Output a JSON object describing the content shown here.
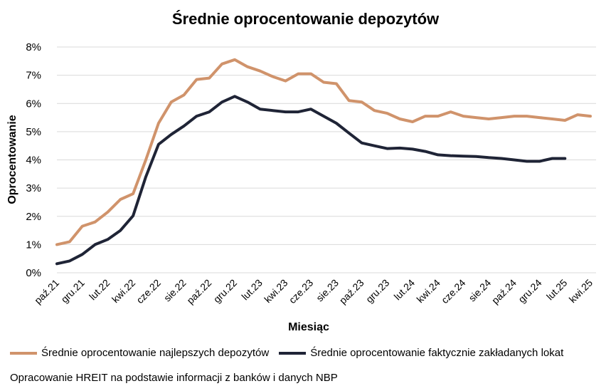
{
  "chart_data": {
    "type": "line",
    "title": "Średnie oprocentowanie depozytów",
    "xlabel": "Miesiąc",
    "ylabel": "Oprocentowanie",
    "ylim": [
      0,
      8
    ],
    "y_ticks": [
      "0%",
      "1%",
      "2%",
      "3%",
      "4%",
      "5%",
      "6%",
      "7%",
      "8%"
    ],
    "x": [
      "paź.21",
      "lis.21",
      "gru.21",
      "sty.22",
      "lut.22",
      "mar.22",
      "kwi.22",
      "maj.22",
      "cze.22",
      "lip.22",
      "sie.22",
      "wrz.22",
      "paź.22",
      "lis.22",
      "gru.22",
      "sty.23",
      "lut.23",
      "mar.23",
      "kwi.23",
      "maj.23",
      "cze.23",
      "lip.23",
      "sie.23",
      "wrz.23",
      "paź.23",
      "lis.23",
      "gru.23",
      "sty.24",
      "lut.24",
      "mar.24",
      "kwi.24",
      "maj.24",
      "cze.24",
      "lip.24",
      "sie.24",
      "wrz.24",
      "paź.24",
      "lis.24",
      "gru.24",
      "sty.25",
      "lut.25",
      "mar.25",
      "kwi.25"
    ],
    "x_tick_labels": [
      "paź.21",
      "gru.21",
      "lut.22",
      "kwi.22",
      "cze.22",
      "sie.22",
      "paź.22",
      "gru.22",
      "lut.23",
      "kwi.23",
      "cze.23",
      "sie.23",
      "paź.23",
      "gru.23",
      "lut.24",
      "kwi.24",
      "cze.24",
      "sie.24",
      "paź.24",
      "gru.24",
      "lut.25",
      "kwi.25"
    ],
    "grid": true,
    "legend_position": "bottom",
    "series": [
      {
        "name": "Średnie oprocentowanie najlepszych depozytów",
        "color": "#d0936b",
        "values": [
          1.0,
          1.1,
          1.65,
          1.8,
          2.15,
          2.6,
          2.8,
          4.0,
          5.3,
          6.05,
          6.3,
          6.85,
          6.9,
          7.4,
          7.55,
          7.3,
          7.15,
          6.95,
          6.8,
          7.05,
          7.05,
          6.75,
          6.7,
          6.1,
          6.05,
          5.75,
          5.65,
          5.45,
          5.35,
          5.55,
          5.55,
          5.7,
          5.55,
          5.5,
          5.45,
          5.5,
          5.55,
          5.55,
          5.5,
          5.45,
          5.4,
          5.6,
          5.55
        ]
      },
      {
        "name": "Średnie oprocentowanie faktycznie zakładanych lokat",
        "color": "#1f2436",
        "values": [
          0.32,
          0.42,
          0.65,
          1.0,
          1.18,
          1.5,
          2.02,
          3.4,
          4.55,
          4.9,
          5.2,
          5.55,
          5.7,
          6.05,
          6.25,
          6.05,
          5.8,
          5.75,
          5.7,
          5.7,
          5.8,
          5.55,
          5.3,
          4.95,
          4.6,
          4.5,
          4.4,
          4.42,
          4.38,
          4.3,
          4.18,
          4.15,
          4.13,
          4.12,
          4.08,
          4.05,
          4.0,
          3.95,
          3.95,
          4.05,
          4.05,
          null,
          null
        ]
      }
    ]
  },
  "footer": {
    "source": "Opracowanie HREIT na podstawie informacji z banków i danych NBP"
  }
}
